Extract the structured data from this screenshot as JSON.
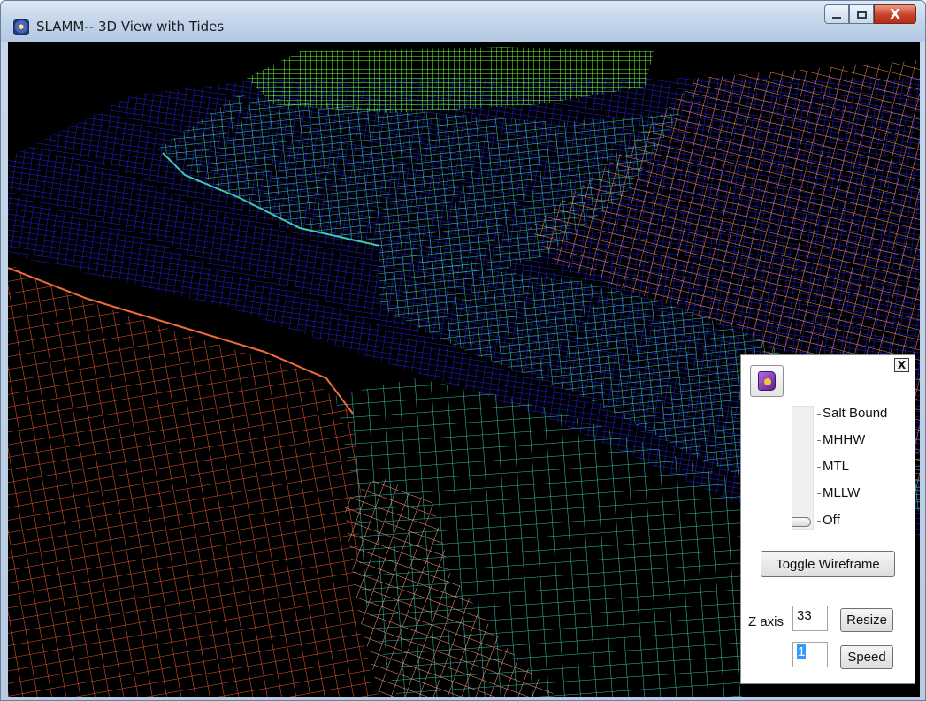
{
  "window": {
    "title": "SLAMM-- 3D View with Tides",
    "minimize_icon": "minimize-icon",
    "maximize_icon": "maximize-icon",
    "close_glyph": "X"
  },
  "viewport": {
    "description_colors": {
      "background": "#000000",
      "upland": "#f08a58",
      "dry_land": "#e85a2c",
      "open_water": "#1a1ad8",
      "marsh": "#3cc8b0",
      "high_ground": "#66ff33"
    }
  },
  "tide_panel": {
    "close_glyph": "X",
    "help_icon": "book-icon",
    "tide_levels": [
      "Salt Bound",
      "MHHW",
      "MTL",
      "MLLW",
      "Off"
    ],
    "selected_tide_level": "Off",
    "toggle_wireframe_label": "Toggle Wireframe",
    "z_axis_label": "Z axis",
    "z_axis_value": "33",
    "resize_label": "Resize",
    "speed_value": "1",
    "speed_label": "Speed"
  }
}
